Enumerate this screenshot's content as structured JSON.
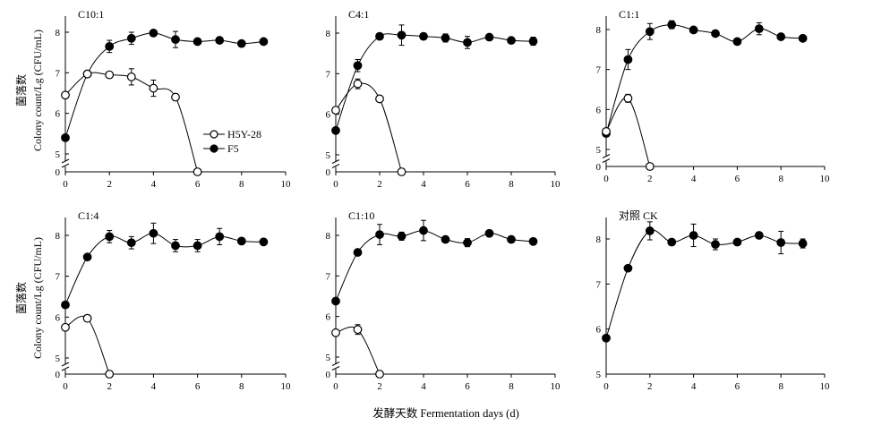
{
  "figure": {
    "xlabel": "发酵天数 Fermentation days (d)",
    "ylabel_cn": "菌落数",
    "ylabel_en": "Colony count/Lg (CFU/mL)",
    "legend": [
      {
        "label": "H5Y-28",
        "marker": "open-circle"
      },
      {
        "label": "F5",
        "marker": "filled-circle"
      }
    ]
  },
  "chart_data": [
    {
      "type": "line",
      "title": "C10:1",
      "xlim": [
        0,
        10
      ],
      "ylim": [
        5,
        8.3
      ],
      "x_ticks": [
        "0",
        "2",
        "4",
        "6",
        "8",
        "10"
      ],
      "y_ticks": [
        "5",
        "6",
        "7",
        "8"
      ],
      "axis_break": true,
      "break_value": "0",
      "series": [
        {
          "name": "H5Y-28",
          "marker": "open",
          "x": [
            0,
            1,
            2,
            3,
            4,
            5,
            6
          ],
          "y": [
            6.45,
            6.97,
            6.95,
            6.9,
            6.62,
            6.4,
            0
          ],
          "err": [
            0,
            0,
            0,
            0.2,
            0.2,
            0.08,
            0
          ]
        },
        {
          "name": "F5",
          "marker": "filled",
          "x": [
            0,
            1,
            2,
            3,
            4,
            5,
            6,
            7,
            8,
            9
          ],
          "y": [
            5.4,
            6.97,
            7.65,
            7.85,
            7.98,
            7.82,
            7.77,
            7.8,
            7.72,
            7.77
          ],
          "err": [
            0,
            0,
            0.15,
            0.15,
            0,
            0.2,
            0,
            0,
            0,
            0
          ]
        }
      ]
    },
    {
      "type": "line",
      "title": "C4:1",
      "xlim": [
        0,
        10
      ],
      "ylim": [
        5,
        8.3
      ],
      "x_ticks": [
        "0",
        "2",
        "4",
        "6",
        "8",
        "10"
      ],
      "y_ticks": [
        "5",
        "6",
        "7",
        "8"
      ],
      "axis_break": true,
      "break_value": "0",
      "series": [
        {
          "name": "H5Y-28",
          "marker": "open",
          "x": [
            0,
            1,
            2,
            3
          ],
          "y": [
            6.1,
            6.75,
            6.38,
            0
          ],
          "err": [
            0,
            0.12,
            0,
            0
          ]
        },
        {
          "name": "F5",
          "marker": "filled",
          "x": [
            0,
            1,
            2,
            3,
            4,
            5,
            6,
            7,
            8,
            9
          ],
          "y": [
            5.6,
            7.2,
            7.92,
            7.95,
            7.92,
            7.88,
            7.77,
            7.9,
            7.82,
            7.8
          ],
          "err": [
            0,
            0.15,
            0,
            0.25,
            0,
            0.1,
            0.15,
            0,
            0,
            0.1
          ]
        }
      ]
    },
    {
      "type": "line",
      "title": "C1:1",
      "xlim": [
        0,
        10
      ],
      "ylim": [
        5,
        8.3
      ],
      "x_ticks": [
        "0",
        "2",
        "4",
        "6",
        "8",
        "10"
      ],
      "y_ticks": [
        "5",
        "6",
        "7",
        "8"
      ],
      "axis_break": true,
      "break_value": "0",
      "series": [
        {
          "name": "H5Y-28",
          "marker": "open",
          "x": [
            0,
            1,
            2
          ],
          "y": [
            5.45,
            6.28,
            0
          ],
          "err": [
            0,
            0.1,
            0
          ]
        },
        {
          "name": "F5",
          "marker": "filled",
          "x": [
            0,
            1,
            2,
            3,
            4,
            5,
            6,
            7,
            8,
            9
          ],
          "y": [
            5.4,
            7.25,
            7.95,
            8.12,
            7.99,
            7.9,
            7.7,
            8.02,
            7.82,
            7.78
          ],
          "err": [
            0,
            0.25,
            0.2,
            0.1,
            0,
            0,
            0,
            0.15,
            0,
            0
          ]
        }
      ]
    },
    {
      "type": "line",
      "title": "C1:4",
      "xlim": [
        0,
        10
      ],
      "ylim": [
        5,
        8.3
      ],
      "x_ticks": [
        "0",
        "2",
        "4",
        "6",
        "8",
        "10"
      ],
      "y_ticks": [
        "5",
        "6",
        "7",
        "8"
      ],
      "axis_break": true,
      "break_value": "0",
      "series": [
        {
          "name": "H5Y-28",
          "marker": "open",
          "x": [
            0,
            1,
            2
          ],
          "y": [
            5.75,
            5.97,
            0
          ],
          "err": [
            0,
            0.08,
            0
          ]
        },
        {
          "name": "F5",
          "marker": "filled",
          "x": [
            0,
            1,
            2,
            3,
            4,
            5,
            6,
            7,
            8,
            9
          ],
          "y": [
            6.3,
            7.47,
            7.97,
            7.82,
            8.05,
            7.75,
            7.75,
            7.97,
            7.86,
            7.84
          ],
          "err": [
            0,
            0,
            0.15,
            0.15,
            0.25,
            0.15,
            0.15,
            0.2,
            0,
            0
          ]
        }
      ]
    },
    {
      "type": "line",
      "title": "C1:10",
      "xlim": [
        0,
        10
      ],
      "ylim": [
        5,
        8.3
      ],
      "x_ticks": [
        "0",
        "2",
        "4",
        "6",
        "8",
        "10"
      ],
      "y_ticks": [
        "5",
        "6",
        "7",
        "8"
      ],
      "axis_break": true,
      "break_value": "0",
      "series": [
        {
          "name": "H5Y-28",
          "marker": "open",
          "x": [
            0,
            1,
            2
          ],
          "y": [
            5.6,
            5.68,
            0
          ],
          "err": [
            0,
            0.12,
            0
          ]
        },
        {
          "name": "F5",
          "marker": "filled",
          "x": [
            0,
            1,
            2,
            3,
            4,
            5,
            6,
            7,
            8,
            9
          ],
          "y": [
            6.38,
            7.58,
            8.02,
            7.98,
            8.12,
            7.9,
            7.82,
            8.05,
            7.9,
            7.85
          ],
          "err": [
            0,
            0,
            0.25,
            0.1,
            0.25,
            0,
            0.1,
            0,
            0,
            0
          ]
        }
      ]
    },
    {
      "type": "line",
      "title": "对照 CK",
      "xlim": [
        0,
        10
      ],
      "ylim": [
        5,
        8.5
      ],
      "x_ticks": [
        "0",
        "2",
        "4",
        "6",
        "8",
        "10"
      ],
      "y_ticks": [
        "5",
        "6",
        "7",
        "8"
      ],
      "axis_break": false,
      "series": [
        {
          "name": "F5",
          "marker": "filled",
          "x": [
            0,
            1,
            2,
            3,
            4,
            5,
            6,
            7,
            8,
            9
          ],
          "y": [
            5.8,
            7.35,
            8.18,
            7.93,
            8.08,
            7.88,
            7.93,
            8.08,
            7.92,
            7.9
          ],
          "err": [
            0,
            0,
            0.2,
            0,
            0.25,
            0.12,
            0,
            0,
            0.25,
            0.1
          ]
        }
      ]
    }
  ]
}
